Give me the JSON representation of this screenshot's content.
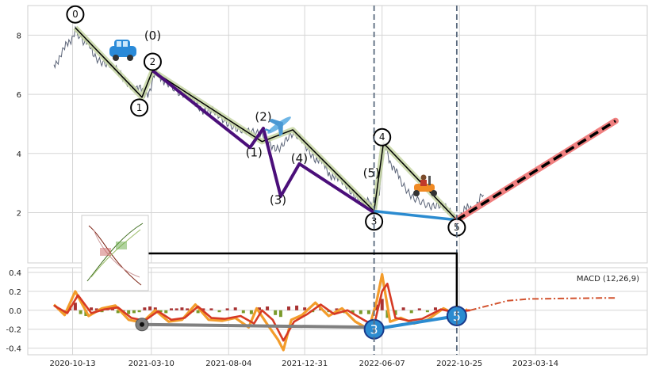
{
  "chart_data": [
    {
      "type": "line",
      "panel": "price",
      "title": "",
      "xlabel": "",
      "ylabel": "",
      "ylim": [
        0.3,
        9.0
      ],
      "y_ticks": [
        2,
        4,
        6,
        8
      ],
      "grid": true,
      "series": [
        {
          "style": "grey-noisy",
          "color": "#5b6478",
          "points": [
            [
              0,
              7.0
            ],
            [
              4,
              7.3
            ],
            [
              8,
              7.5
            ],
            [
              12,
              7.8
            ],
            [
              16,
              8.25
            ],
            [
              22,
              7.8
            ],
            [
              30,
              7.4
            ],
            [
              40,
              7.0
            ],
            [
              50,
              6.6
            ],
            [
              60,
              6.3
            ],
            [
              68,
              6.0
            ],
            [
              72,
              6.2
            ],
            [
              76,
              6.7
            ],
            [
              84,
              6.5
            ],
            [
              96,
              6.0
            ],
            [
              110,
              5.6
            ],
            [
              124,
              5.2
            ],
            [
              140,
              4.9
            ],
            [
              156,
              4.5
            ],
            [
              170,
              4.2
            ],
            [
              180,
              4.6
            ],
            [
              186,
              4.4
            ],
            [
              196,
              3.9
            ],
            [
              204,
              3.5
            ],
            [
              212,
              3.1
            ],
            [
              222,
              2.8
            ],
            [
              232,
              2.4
            ],
            [
              240,
              2.15
            ],
            [
              244,
              2.7
            ],
            [
              248,
              4.3
            ],
            [
              252,
              3.8
            ],
            [
              260,
              3.0
            ],
            [
              270,
              2.6
            ],
            [
              282,
              2.3
            ],
            [
              292,
              2.1
            ],
            [
              302,
              1.85
            ],
            [
              310,
              2.1
            ],
            [
              318,
              2.3
            ],
            [
              322,
              2.6
            ]
          ]
        },
        {
          "style": "zigzag-olive-with-black-core",
          "color": "#c7d6a4",
          "core_color": "#000000",
          "points": [
            [
              16,
              8.25
            ],
            [
              66,
              5.9
            ],
            [
              74,
              6.8
            ],
            [
              156,
              4.4
            ],
            [
              179,
              4.8
            ],
            [
              240,
              2.05
            ],
            [
              247,
              4.35
            ],
            [
              302,
              1.75
            ]
          ]
        },
        {
          "style": "purple-thick",
          "color": "#4b0f7a",
          "points": [
            [
              74,
              6.8
            ],
            [
              147,
              4.2
            ],
            [
              157,
              4.85
            ],
            [
              170,
              2.55
            ],
            [
              184,
              3.65
            ],
            [
              240,
              2.0
            ]
          ]
        },
        {
          "style": "blue-segment",
          "color": "#2b8bd0",
          "points": [
            [
              240,
              2.05
            ],
            [
              302,
              1.75
            ]
          ]
        },
        {
          "style": "pink-projection",
          "color": "#f08080",
          "points": [
            [
              302,
              1.75
            ],
            [
              421,
              5.1
            ]
          ]
        },
        {
          "style": "black-dashed-projection",
          "color": "#000000",
          "points": [
            [
              302,
              1.75
            ],
            [
              421,
              5.1
            ]
          ]
        }
      ],
      "vertical_dashed_lines_x": [
        240,
        302
      ],
      "wave_numbers_circled": [
        {
          "text": "0",
          "x": 16,
          "y": 8.7
        },
        {
          "text": "1",
          "x": 64,
          "y": 5.55
        },
        {
          "text": "2",
          "x": 74,
          "y": 7.1
        },
        {
          "text": "3",
          "x": 240,
          "y": 1.7
        },
        {
          "text": "4",
          "x": 246,
          "y": 4.55
        },
        {
          "text": "5",
          "x": 302,
          "y": 1.5
        }
      ],
      "wave_labels": [
        {
          "text": "(0)",
          "x": 74,
          "y": 7.85
        },
        {
          "text": "(1)",
          "x": 150,
          "y": 3.9
        },
        {
          "text": "(2)",
          "x": 157,
          "y": 5.1
        },
        {
          "text": "(3)",
          "x": 168,
          "y": 2.3
        },
        {
          "text": "(4)",
          "x": 184,
          "y": 3.7
        },
        {
          "text": "(5)",
          "x": 238,
          "y": 3.2
        }
      ],
      "icons": [
        "car-icon",
        "airplane-icon",
        "scooter-icon"
      ]
    },
    {
      "type": "line",
      "panel": "macd",
      "title": "",
      "ylim": [
        -0.47,
        0.45
      ],
      "y_ticks": [
        -0.4,
        -0.2,
        0.0,
        0.2,
        0.4
      ],
      "grid": true,
      "legend": {
        "text": "MACD (12,26,9)",
        "placement": "top-right"
      },
      "x_tick_labels": [
        "2020-10-13",
        "2021-03-10",
        "2021-08-04",
        "2021-12-31",
        "2022-06-07",
        "2022-10-25",
        "2023-03-14"
      ],
      "x_tick_positions": [
        14,
        73,
        131,
        188,
        246,
        304,
        361
      ],
      "series": [
        {
          "name": "",
          "style": "orange",
          "color": "#f39c2b",
          "points": [
            [
              0,
              0.06
            ],
            [
              8,
              -0.05
            ],
            [
              16,
              0.2
            ],
            [
              26,
              -0.06
            ],
            [
              36,
              0.02
            ],
            [
              46,
              0.05
            ],
            [
              56,
              -0.1
            ],
            [
              66,
              -0.13
            ],
            [
              76,
              0.0
            ],
            [
              86,
              -0.12
            ],
            [
              96,
              -0.1
            ],
            [
              106,
              0.06
            ],
            [
              116,
              -0.1
            ],
            [
              126,
              -0.11
            ],
            [
              136,
              -0.08
            ],
            [
              146,
              -0.18
            ],
            [
              152,
              0.02
            ],
            [
              160,
              -0.15
            ],
            [
              168,
              -0.31
            ],
            [
              172,
              -0.42
            ],
            [
              178,
              -0.1
            ],
            [
              186,
              -0.05
            ],
            [
              196,
              0.08
            ],
            [
              206,
              -0.06
            ],
            [
              216,
              0.02
            ],
            [
              226,
              -0.12
            ],
            [
              236,
              -0.2
            ],
            [
              242,
              0.1
            ],
            [
              246,
              0.38
            ],
            [
              252,
              -0.12
            ],
            [
              260,
              -0.08
            ],
            [
              270,
              -0.14
            ],
            [
              280,
              -0.1
            ],
            [
              292,
              0.02
            ],
            [
              302,
              -0.05
            ],
            [
              310,
              0.01
            ]
          ]
        },
        {
          "name": "",
          "style": "red",
          "color": "#d63a24",
          "points": [
            [
              0,
              0.05
            ],
            [
              10,
              -0.03
            ],
            [
              18,
              0.16
            ],
            [
              28,
              -0.03
            ],
            [
              38,
              0.01
            ],
            [
              48,
              0.03
            ],
            [
              58,
              -0.08
            ],
            [
              68,
              -0.11
            ],
            [
              78,
              -0.01
            ],
            [
              88,
              -0.1
            ],
            [
              98,
              -0.08
            ],
            [
              108,
              0.04
            ],
            [
              118,
              -0.08
            ],
            [
              128,
              -0.09
            ],
            [
              140,
              -0.06
            ],
            [
              150,
              -0.14
            ],
            [
              156,
              0.0
            ],
            [
              164,
              -0.1
            ],
            [
              172,
              -0.32
            ],
            [
              180,
              -0.12
            ],
            [
              190,
              -0.04
            ],
            [
              200,
              0.06
            ],
            [
              210,
              -0.04
            ],
            [
              220,
              0.0
            ],
            [
              232,
              -0.1
            ],
            [
              240,
              -0.16
            ],
            [
              246,
              0.2
            ],
            [
              250,
              0.28
            ],
            [
              256,
              -0.08
            ],
            [
              266,
              -0.11
            ],
            [
              276,
              -0.09
            ],
            [
              290,
              0.01
            ],
            [
              300,
              -0.02
            ],
            [
              312,
              0.0
            ]
          ]
        },
        {
          "name": "",
          "style": "projection-dashdot",
          "color": "#d2522e",
          "points": [
            [
              312,
              0.0
            ],
            [
              326,
              0.05
            ],
            [
              340,
              0.1
            ],
            [
              356,
              0.12
            ],
            [
              380,
              0.125
            ],
            [
              410,
              0.13
            ],
            [
              421,
              0.13
            ]
          ]
        },
        {
          "name": "",
          "style": "grey-thick",
          "color": "#808080",
          "points": [
            [
              66,
              -0.15
            ],
            [
              240,
              -0.18
            ]
          ]
        },
        {
          "name": "",
          "style": "blue-thick",
          "color": "#2b8bd0",
          "points": [
            [
              240,
              -0.2
            ],
            [
              302,
              -0.06
            ]
          ]
        }
      ],
      "histogram": [
        {
          "x": 4,
          "v": 0.02
        },
        {
          "x": 8,
          "v": -0.03
        },
        {
          "x": 12,
          "v": 0.05
        },
        {
          "x": 16,
          "v": 0.08
        },
        {
          "x": 20,
          "v": -0.04
        },
        {
          "x": 24,
          "v": -0.06
        },
        {
          "x": 28,
          "v": 0.03
        },
        {
          "x": 32,
          "v": 0.02
        },
        {
          "x": 36,
          "v": -0.02
        },
        {
          "x": 40,
          "v": 0.03
        },
        {
          "x": 44,
          "v": 0.02
        },
        {
          "x": 48,
          "v": -0.03
        },
        {
          "x": 52,
          "v": -0.02
        },
        {
          "x": 56,
          "v": -0.04
        },
        {
          "x": 60,
          "v": -0.03
        },
        {
          "x": 64,
          "v": -0.02
        },
        {
          "x": 68,
          "v": 0.03
        },
        {
          "x": 72,
          "v": 0.04
        },
        {
          "x": 76,
          "v": 0.03
        },
        {
          "x": 80,
          "v": -0.02
        },
        {
          "x": 84,
          "v": -0.03
        },
        {
          "x": 88,
          "v": 0.02
        },
        {
          "x": 92,
          "v": 0.02
        },
        {
          "x": 96,
          "v": 0.03
        },
        {
          "x": 100,
          "v": 0.02
        },
        {
          "x": 104,
          "v": -0.02
        },
        {
          "x": 108,
          "v": -0.03
        },
        {
          "x": 112,
          "v": 0.02
        },
        {
          "x": 118,
          "v": 0.02
        },
        {
          "x": 124,
          "v": -0.02
        },
        {
          "x": 130,
          "v": 0.02
        },
        {
          "x": 136,
          "v": 0.03
        },
        {
          "x": 142,
          "v": -0.03
        },
        {
          "x": 148,
          "v": -0.04
        },
        {
          "x": 154,
          "v": 0.03
        },
        {
          "x": 160,
          "v": 0.04
        },
        {
          "x": 166,
          "v": -0.05
        },
        {
          "x": 170,
          "v": -0.07
        },
        {
          "x": 176,
          "v": 0.04
        },
        {
          "x": 182,
          "v": 0.05
        },
        {
          "x": 188,
          "v": 0.03
        },
        {
          "x": 194,
          "v": -0.02
        },
        {
          "x": 200,
          "v": 0.03
        },
        {
          "x": 206,
          "v": -0.02
        },
        {
          "x": 212,
          "v": 0.02
        },
        {
          "x": 218,
          "v": -0.03
        },
        {
          "x": 224,
          "v": -0.03
        },
        {
          "x": 230,
          "v": -0.04
        },
        {
          "x": 236,
          "v": -0.04
        },
        {
          "x": 242,
          "v": 0.06
        },
        {
          "x": 246,
          "v": 0.12
        },
        {
          "x": 250,
          "v": -0.08
        },
        {
          "x": 256,
          "v": -0.05
        },
        {
          "x": 262,
          "v": 0.03
        },
        {
          "x": 268,
          "v": -0.03
        },
        {
          "x": 274,
          "v": 0.02
        },
        {
          "x": 280,
          "v": -0.02
        },
        {
          "x": 286,
          "v": 0.03
        },
        {
          "x": 292,
          "v": 0.02
        },
        {
          "x": 298,
          "v": -0.02
        },
        {
          "x": 304,
          "v": 0.01
        },
        {
          "x": 310,
          "v": 0.01
        }
      ],
      "circled_points": [
        {
          "text": "",
          "x": 66,
          "y": -0.15,
          "color": "#808080"
        },
        {
          "text": "3",
          "x": 240,
          "y": -0.2,
          "color": "#2b8bd0"
        },
        {
          "text": "5",
          "x": 302,
          "y": -0.06,
          "color": "#2b8bd0"
        }
      ]
    }
  ],
  "colors": {
    "grid": "#d5d5d5",
    "dashed_line": "#5a6a7e",
    "connector": "#000000"
  }
}
